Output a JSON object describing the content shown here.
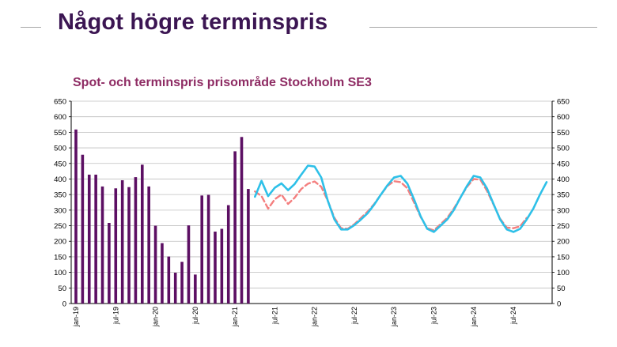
{
  "slide": {
    "title": "Något högre terminspris"
  },
  "chart_data": {
    "type": "bar",
    "title": "Spot- och terminspris prisområde Stockholm SE3",
    "xlabel": "",
    "ylabel": "",
    "ylim": [
      0,
      650
    ],
    "y_ticks": [
      0,
      50,
      100,
      150,
      200,
      250,
      300,
      350,
      400,
      450,
      500,
      550,
      600,
      650
    ],
    "grid": true,
    "legend": "none",
    "x_tick_labels": [
      "jan-19",
      "jul-19",
      "jan-20",
      "jul-20",
      "jan-21",
      "jul-21",
      "jan-22",
      "jul-22",
      "jan-23",
      "jul-23",
      "jan-24",
      "jul-24"
    ],
    "months_start": "2019-01",
    "bar_color": "#5c0f63",
    "colors": {
      "forward_solid": "#2ec0e8",
      "forward_dashed": "#f47f7f"
    },
    "series": [
      {
        "kind": "bar",
        "start": "2019-01",
        "values": [
          559,
          478,
          414,
          414,
          376,
          259,
          370,
          396,
          374,
          406,
          446,
          376,
          250,
          194,
          151,
          99,
          134,
          251,
          93,
          347,
          349,
          231,
          240,
          316,
          489,
          535,
          368
        ]
      },
      {
        "kind": "line",
        "style": "solid",
        "start": "2021-04",
        "values": [
          343,
          394,
          345,
          372,
          386,
          364,
          384,
          414,
          443,
          440,
          405,
          330,
          270,
          238,
          238,
          252,
          270,
          290,
          318,
          350,
          380,
          405,
          410,
          385,
          335,
          280,
          240,
          230,
          250,
          270,
          300,
          340,
          378,
          410,
          405,
          370,
          320,
          270,
          238,
          230,
          240,
          270,
          305,
          350,
          390
        ]
      },
      {
        "kind": "line",
        "style": "dashed",
        "start": "2021-04",
        "values": [
          360,
          345,
          305,
          335,
          350,
          320,
          340,
          368,
          385,
          392,
          375,
          330,
          275,
          242,
          240,
          255,
          275,
          295,
          320,
          350,
          378,
          393,
          390,
          370,
          325,
          278,
          242,
          235,
          255,
          275,
          305,
          340,
          375,
          400,
          398,
          362,
          318,
          272,
          244,
          242,
          248,
          275
        ]
      }
    ]
  }
}
